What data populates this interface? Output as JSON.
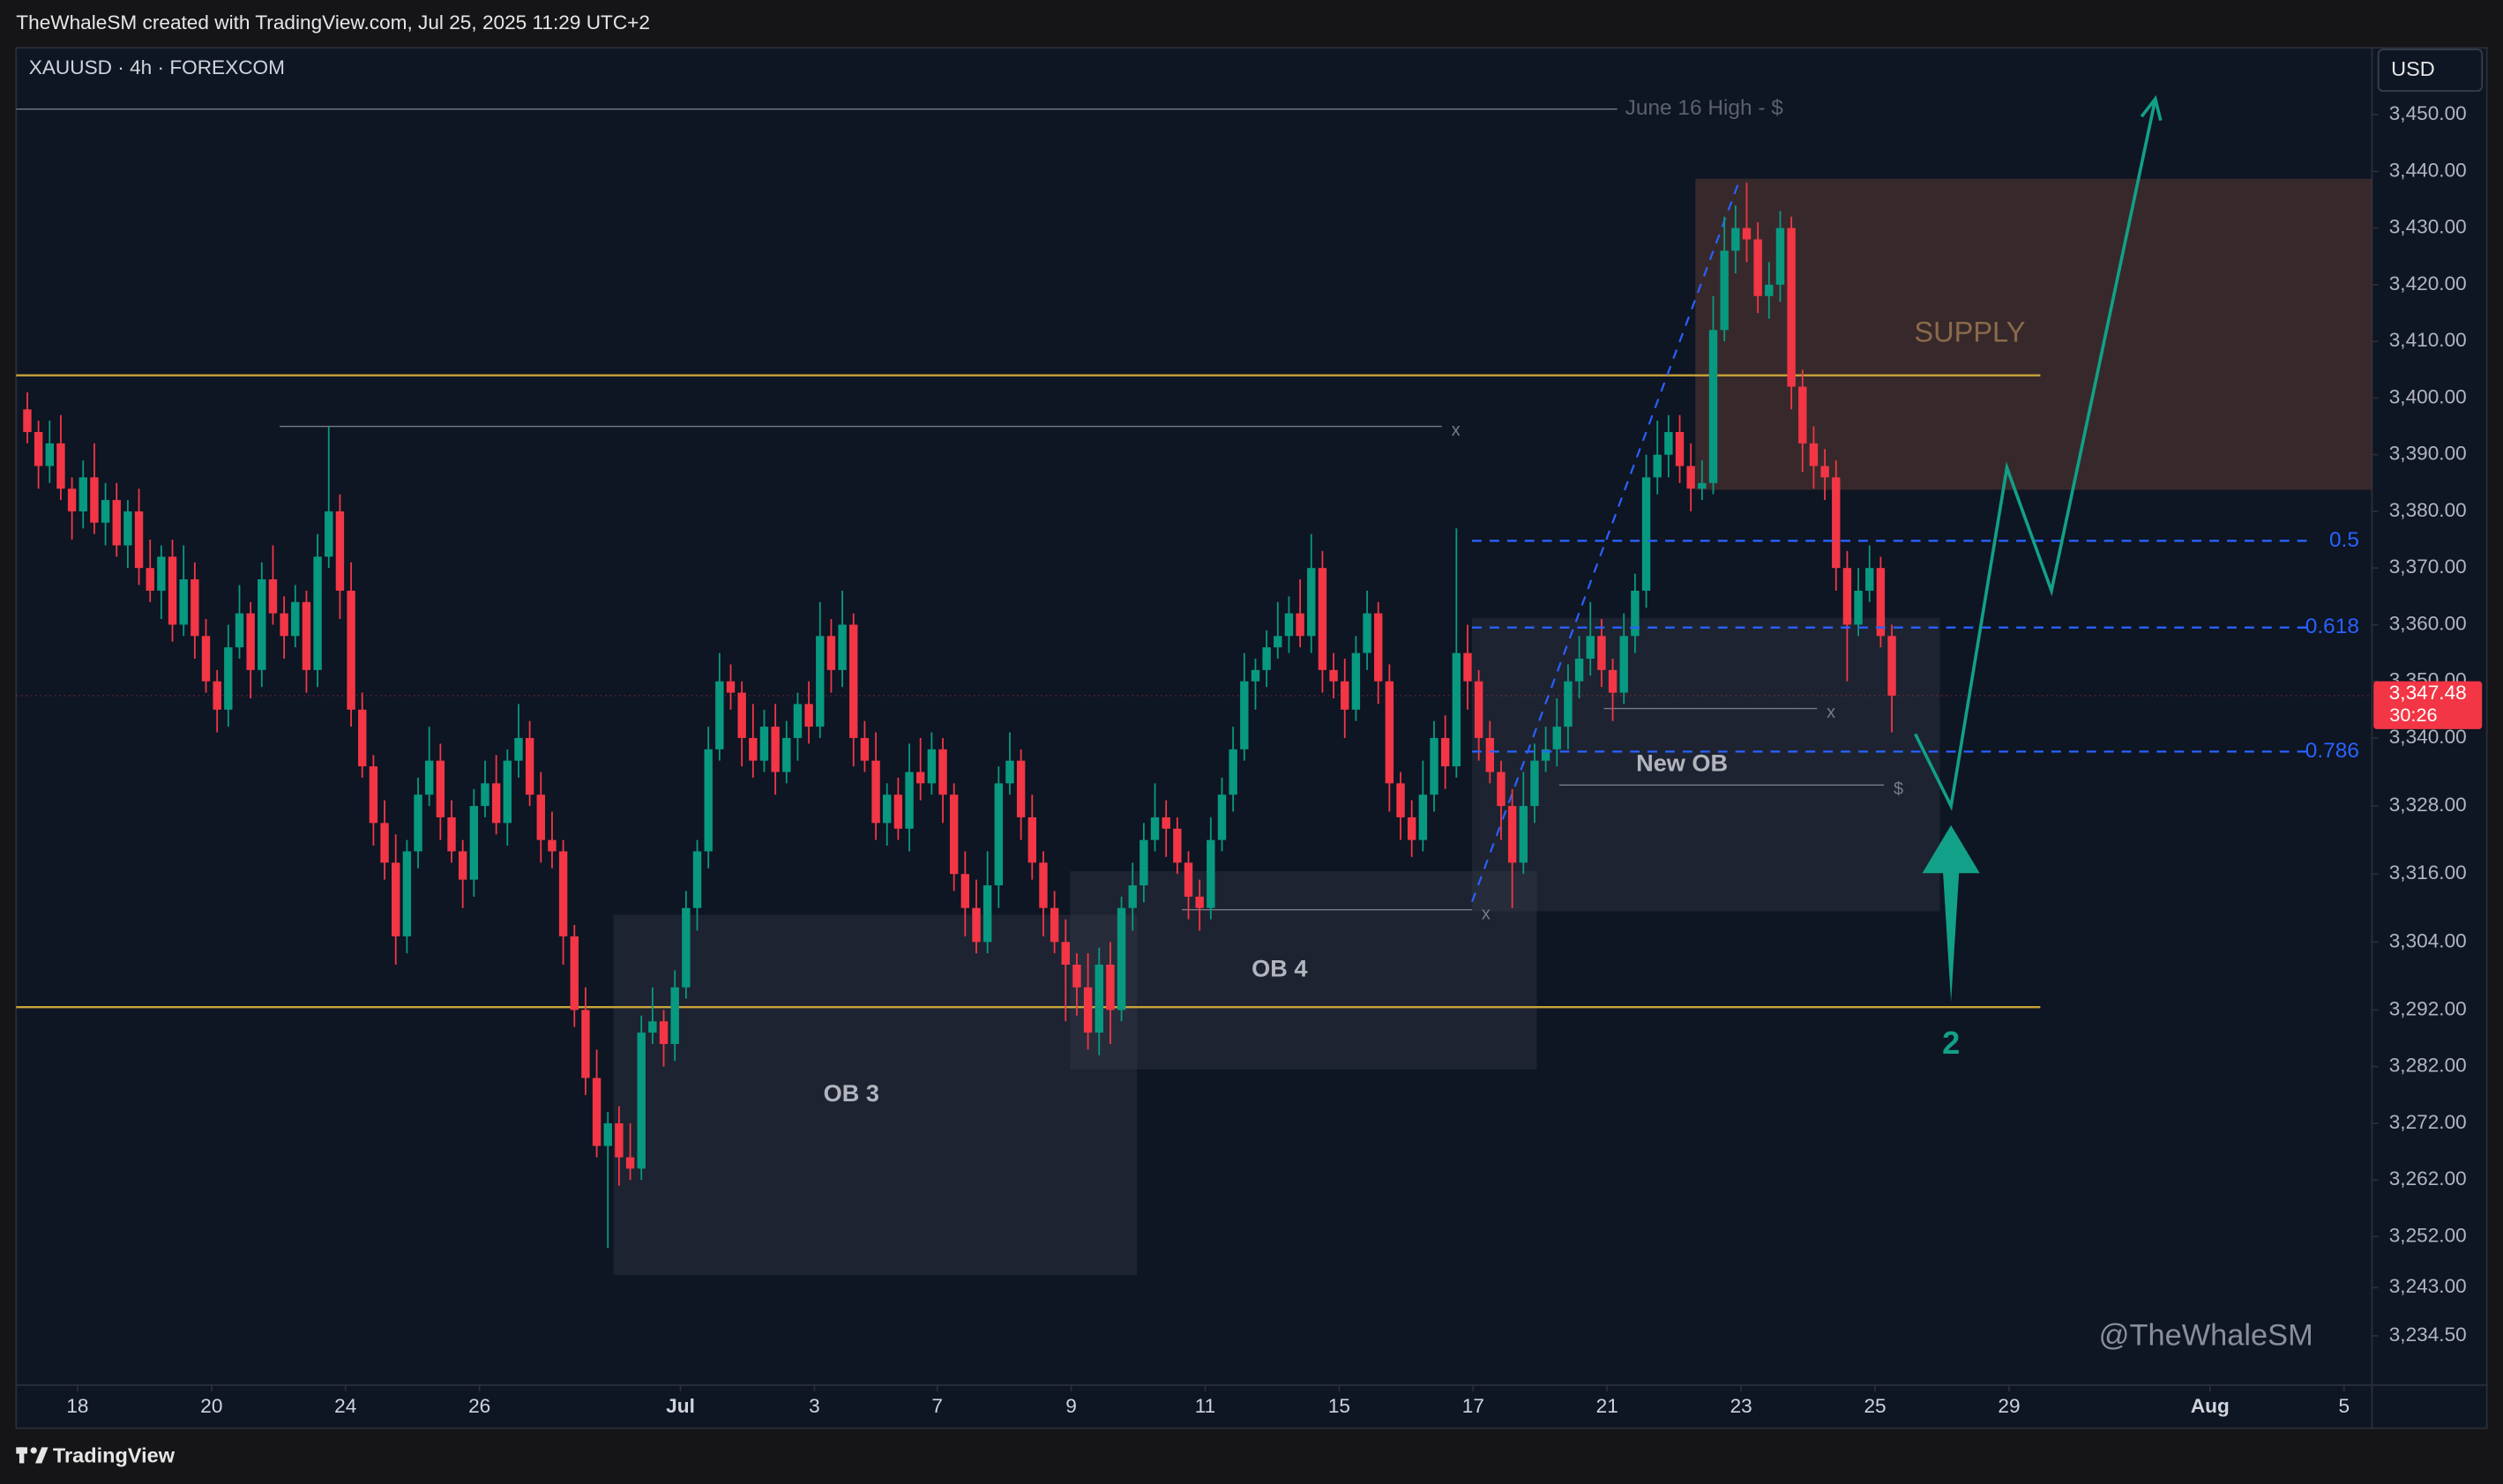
{
  "chart_data": {
    "type": "candlestick",
    "header": "TheWhaleSM created with TradingView.com, Jul 25, 2025 11:29 UTC+2",
    "symbol": "XAUUSD · 4h · FOREXCOM",
    "currency": "USD",
    "watermark": "@TheWhaleSM",
    "footer": "TradingView",
    "up_color": "#089981",
    "down_color": "#f23645",
    "grid": false,
    "xlim": [
      -1,
      210
    ],
    "ylim": [
      3225.8,
      3461.8
    ],
    "xticks": [
      {
        "value": 4.5,
        "label": "18"
      },
      {
        "value": 16.5,
        "label": "20"
      },
      {
        "value": 28.5,
        "label": "24"
      },
      {
        "value": 40.5,
        "label": "26"
      },
      {
        "value": 58.5,
        "label": "Jul"
      },
      {
        "value": 70.5,
        "label": "3"
      },
      {
        "value": 81.5,
        "label": "7"
      },
      {
        "value": 93.5,
        "label": "9"
      },
      {
        "value": 105.5,
        "label": "11"
      },
      {
        "value": 117.5,
        "label": "15"
      },
      {
        "value": 129.5,
        "label": "17"
      },
      {
        "value": 141.5,
        "label": "21"
      },
      {
        "value": 153.5,
        "label": "23"
      },
      {
        "value": 165.5,
        "label": "25"
      },
      {
        "value": 177.5,
        "label": "29"
      },
      {
        "value": 195.5,
        "label": "Aug"
      },
      {
        "value": 207.5,
        "label": "5"
      }
    ],
    "yticks": [
      {
        "value": 3450,
        "label": "3,450.00"
      },
      {
        "value": 3440,
        "label": "3,440.00"
      },
      {
        "value": 3430,
        "label": "3,430.00"
      },
      {
        "value": 3420,
        "label": "3,420.00"
      },
      {
        "value": 3410,
        "label": "3,410.00"
      },
      {
        "value": 3400,
        "label": "3,400.00"
      },
      {
        "value": 3390,
        "label": "3,390.00"
      },
      {
        "value": 3380,
        "label": "3,380.00"
      },
      {
        "value": 3370,
        "label": "3,370.00"
      },
      {
        "value": 3360,
        "label": "3,360.00"
      },
      {
        "value": 3350,
        "label": "3,350.00"
      },
      {
        "value": 3340,
        "label": "3,340.00"
      },
      {
        "value": 3328,
        "label": "3,328.00"
      },
      {
        "value": 3316,
        "label": "3,316.00"
      },
      {
        "value": 3304,
        "label": "3,304.00"
      },
      {
        "value": 3292,
        "label": "3,292.00"
      },
      {
        "value": 3282,
        "label": "3,282.00"
      },
      {
        "value": 3272,
        "label": "3,272.00"
      },
      {
        "value": 3262,
        "label": "3,262.00"
      },
      {
        "value": 3252,
        "label": "3,252.00"
      },
      {
        "value": 3243,
        "label": "3,243.00"
      },
      {
        "value": 3234.5,
        "label": "3,234.50"
      }
    ],
    "last_price": {
      "value": 3347.48,
      "label": "3,347.48",
      "countdown": "30:26",
      "color": "#f23645"
    },
    "candles": [
      [
        3398,
        3401,
        3392,
        3394
      ],
      [
        3394,
        3396,
        3384,
        3388
      ],
      [
        3388,
        3396,
        3385,
        3392
      ],
      [
        3392,
        3397,
        3382,
        3384
      ],
      [
        3384,
        3386,
        3375,
        3380
      ],
      [
        3380,
        3389,
        3377,
        3386
      ],
      [
        3386,
        3392,
        3376,
        3378
      ],
      [
        3378,
        3385,
        3374,
        3382
      ],
      [
        3382,
        3385,
        3372,
        3374
      ],
      [
        3374,
        3382,
        3370,
        3380
      ],
      [
        3380,
        3384,
        3367,
        3370
      ],
      [
        3370,
        3375,
        3364,
        3366
      ],
      [
        3366,
        3374,
        3361,
        3372
      ],
      [
        3372,
        3375,
        3357,
        3360
      ],
      [
        3360,
        3374,
        3358,
        3368
      ],
      [
        3368,
        3371,
        3354,
        3358
      ],
      [
        3358,
        3361,
        3348,
        3350
      ],
      [
        3350,
        3352,
        3341,
        3345
      ],
      [
        3345,
        3360,
        3342,
        3356
      ],
      [
        3356,
        3367,
        3354,
        3362
      ],
      [
        3362,
        3364,
        3347,
        3352
      ],
      [
        3352,
        3371,
        3349,
        3368
      ],
      [
        3368,
        3374,
        3360,
        3362
      ],
      [
        3362,
        3365,
        3354,
        3358
      ],
      [
        3358,
        3367,
        3356,
        3364
      ],
      [
        3364,
        3366,
        3348,
        3352
      ],
      [
        3352,
        3376,
        3349,
        3372
      ],
      [
        3372,
        3395,
        3370,
        3380
      ],
      [
        3380,
        3383,
        3361,
        3366
      ],
      [
        3366,
        3371,
        3342,
        3345
      ],
      [
        3345,
        3348,
        3333,
        3335
      ],
      [
        3335,
        3337,
        3321,
        3325
      ],
      [
        3325,
        3329,
        3315,
        3318
      ],
      [
        3318,
        3323,
        3300,
        3305
      ],
      [
        3305,
        3322,
        3302,
        3320
      ],
      [
        3320,
        3333,
        3317,
        3330
      ],
      [
        3330,
        3342,
        3328,
        3336
      ],
      [
        3336,
        3339,
        3322,
        3326
      ],
      [
        3326,
        3329,
        3318,
        3320
      ],
      [
        3320,
        3322,
        3310,
        3315
      ],
      [
        3315,
        3331,
        3312,
        3328
      ],
      [
        3328,
        3336,
        3326,
        3332
      ],
      [
        3332,
        3337,
        3323,
        3325
      ],
      [
        3325,
        3338,
        3321,
        3336
      ],
      [
        3336,
        3346,
        3333,
        3340
      ],
      [
        3340,
        3343,
        3328,
        3330
      ],
      [
        3330,
        3334,
        3318,
        3322
      ],
      [
        3322,
        3327,
        3317,
        3320
      ],
      [
        3320,
        3322,
        3300,
        3305
      ],
      [
        3305,
        3307,
        3289,
        3292
      ],
      [
        3292,
        3296,
        3277,
        3280
      ],
      [
        3280,
        3285,
        3266,
        3268
      ],
      [
        3268,
        3274,
        3250,
        3272
      ],
      [
        3272,
        3275,
        3261,
        3266
      ],
      [
        3266,
        3272,
        3262,
        3264
      ],
      [
        3264,
        3291,
        3262,
        3288
      ],
      [
        3288,
        3296,
        3286,
        3290
      ],
      [
        3290,
        3292,
        3282,
        3286
      ],
      [
        3286,
        3299,
        3283,
        3296
      ],
      [
        3296,
        3313,
        3294,
        3310
      ],
      [
        3310,
        3322,
        3306,
        3320
      ],
      [
        3320,
        3342,
        3317,
        3338
      ],
      [
        3338,
        3355,
        3336,
        3350
      ],
      [
        3350,
        3353,
        3345,
        3348
      ],
      [
        3348,
        3350,
        3335,
        3340
      ],
      [
        3340,
        3346,
        3333,
        3336
      ],
      [
        3336,
        3345,
        3334,
        3342
      ],
      [
        3342,
        3346,
        3330,
        3334
      ],
      [
        3334,
        3343,
        3332,
        3340
      ],
      [
        3340,
        3348,
        3336,
        3346
      ],
      [
        3346,
        3350,
        3339,
        3342
      ],
      [
        3342,
        3364,
        3340,
        3358
      ],
      [
        3358,
        3361,
        3348,
        3352
      ],
      [
        3352,
        3366,
        3349,
        3360
      ],
      [
        3360,
        3362,
        3335,
        3340
      ],
      [
        3340,
        3343,
        3334,
        3336
      ],
      [
        3336,
        3341,
        3322,
        3325
      ],
      [
        3325,
        3332,
        3321,
        3330
      ],
      [
        3330,
        3333,
        3322,
        3324
      ],
      [
        3324,
        3339,
        3320,
        3334
      ],
      [
        3334,
        3340,
        3329,
        3332
      ],
      [
        3332,
        3341,
        3330,
        3338
      ],
      [
        3338,
        3340,
        3325,
        3330
      ],
      [
        3330,
        3332,
        3313,
        3316
      ],
      [
        3316,
        3320,
        3305,
        3310
      ],
      [
        3310,
        3315,
        3302,
        3304
      ],
      [
        3304,
        3320,
        3302,
        3314
      ],
      [
        3314,
        3335,
        3310,
        3332
      ],
      [
        3332,
        3341,
        3330,
        3336
      ],
      [
        3336,
        3338,
        3322,
        3326
      ],
      [
        3326,
        3330,
        3315,
        3318
      ],
      [
        3318,
        3320,
        3305,
        3310
      ],
      [
        3310,
        3313,
        3302,
        3304
      ],
      [
        3304,
        3308,
        3290,
        3300
      ],
      [
        3300,
        3302,
        3291,
        3296
      ],
      [
        3296,
        3302,
        3285,
        3288
      ],
      [
        3288,
        3303,
        3284,
        3300
      ],
      [
        3300,
        3304,
        3286,
        3292
      ],
      [
        3292,
        3312,
        3290,
        3310
      ],
      [
        3310,
        3318,
        3306,
        3314
      ],
      [
        3314,
        3325,
        3311,
        3322
      ],
      [
        3322,
        3332,
        3320,
        3326
      ],
      [
        3326,
        3329,
        3319,
        3324
      ],
      [
        3324,
        3326,
        3316,
        3318
      ],
      [
        3318,
        3320,
        3308,
        3312
      ],
      [
        3312,
        3315,
        3306,
        3310
      ],
      [
        3310,
        3326,
        3308,
        3322
      ],
      [
        3322,
        3333,
        3320,
        3330
      ],
      [
        3330,
        3342,
        3327,
        3338
      ],
      [
        3338,
        3355,
        3336,
        3350
      ],
      [
        3350,
        3354,
        3345,
        3352
      ],
      [
        3352,
        3359,
        3349,
        3356
      ],
      [
        3356,
        3364,
        3354,
        3358
      ],
      [
        3358,
        3365,
        3355,
        3362
      ],
      [
        3362,
        3368,
        3356,
        3358
      ],
      [
        3358,
        3376,
        3355,
        3370
      ],
      [
        3370,
        3373,
        3348,
        3352
      ],
      [
        3352,
        3355,
        3347,
        3350
      ],
      [
        3350,
        3354,
        3340,
        3345
      ],
      [
        3345,
        3358,
        3343,
        3355
      ],
      [
        3355,
        3366,
        3352,
        3362
      ],
      [
        3362,
        3364,
        3346,
        3350
      ],
      [
        3350,
        3353,
        3327,
        3332
      ],
      [
        3332,
        3334,
        3322,
        3326
      ],
      [
        3326,
        3329,
        3319,
        3322
      ],
      [
        3322,
        3336,
        3320,
        3330
      ],
      [
        3330,
        3343,
        3327,
        3340
      ],
      [
        3340,
        3344,
        3331,
        3335
      ],
      [
        3335,
        3377,
        3333,
        3355
      ],
      [
        3355,
        3360,
        3345,
        3350
      ],
      [
        3350,
        3352,
        3336,
        3340
      ],
      [
        3340,
        3343,
        3332,
        3334
      ],
      [
        3334,
        3336,
        3322,
        3328
      ],
      [
        3328,
        3331,
        3310,
        3318
      ],
      [
        3318,
        3334,
        3316,
        3328
      ],
      [
        3328,
        3339,
        3325,
        3336
      ],
      [
        3336,
        3342,
        3334,
        3338
      ],
      [
        3338,
        3347,
        3335,
        3342
      ],
      [
        3342,
        3353,
        3338,
        3350
      ],
      [
        3350,
        3358,
        3347,
        3354
      ],
      [
        3354,
        3364,
        3351,
        3358
      ],
      [
        3358,
        3361,
        3349,
        3352
      ],
      [
        3352,
        3354,
        3343,
        3348
      ],
      [
        3348,
        3362,
        3346,
        3358
      ],
      [
        3358,
        3369,
        3355,
        3366
      ],
      [
        3366,
        3390,
        3363,
        3386
      ],
      [
        3386,
        3396,
        3383,
        3390
      ],
      [
        3390,
        3397,
        3386,
        3394
      ],
      [
        3394,
        3397,
        3385,
        3388
      ],
      [
        3388,
        3392,
        3380,
        3384
      ],
      [
        3384,
        3389,
        3382,
        3385
      ],
      [
        3385,
        3418,
        3383,
        3412
      ],
      [
        3412,
        3432,
        3410,
        3426
      ],
      [
        3426,
        3434,
        3422,
        3430
      ],
      [
        3430,
        3438,
        3424,
        3428
      ],
      [
        3428,
        3431,
        3415,
        3418
      ],
      [
        3418,
        3424,
        3414,
        3420
      ],
      [
        3420,
        3433,
        3417,
        3430
      ],
      [
        3430,
        3432,
        3398,
        3402
      ],
      [
        3402,
        3405,
        3387,
        3392
      ],
      [
        3392,
        3395,
        3384,
        3388
      ],
      [
        3388,
        3391,
        3382,
        3386
      ],
      [
        3386,
        3389,
        3366,
        3370
      ],
      [
        3370,
        3373,
        3350,
        3360
      ],
      [
        3360,
        3370,
        3358,
        3366
      ],
      [
        3366,
        3374,
        3364,
        3370
      ],
      [
        3370,
        3372,
        3356,
        3358
      ],
      [
        3358,
        3360,
        3341,
        3347.48
      ]
    ],
    "levels": [
      {
        "label": "June 16 High - $",
        "value": 3451,
        "x0": -1,
        "x1": 142.4,
        "color": "#787b86"
      },
      {
        "value": 3404,
        "x0": -1,
        "x1": 180.3,
        "color": "#c9a33a"
      },
      {
        "value": 3292.5,
        "x0": -1,
        "x1": 180.3,
        "color": "#c9a33a"
      }
    ],
    "fib": [
      {
        "ratio": 0.5,
        "value": 3374.8
      },
      {
        "ratio": 0.618,
        "value": 3359.5
      },
      {
        "ratio": 0.786,
        "value": 3337.6
      }
    ],
    "fib_x": [
      129.4,
      204.6
    ],
    "fib_color": "#2962ff",
    "zones": [
      {
        "label": "SUPPLY",
        "top": 3438.7,
        "bottom": 3383.8,
        "x0": 149.4,
        "x1": 210,
        "color": "#5a3a33"
      },
      {
        "label": "New OB",
        "top": 3361.2,
        "bottom": 3309.4,
        "x0": 129.4,
        "x1": 171.3,
        "color": "#3a3f4b"
      },
      {
        "label": "OB 4",
        "top": 3316.5,
        "bottom": 3281.5,
        "x0": 93.4,
        "x1": 135.2,
        "color": "#3a3f4b"
      },
      {
        "label": "OB 3",
        "top": 3308.8,
        "bottom": 3245.2,
        "x0": 52.5,
        "x1": 99.4,
        "color": "#3a3f4b"
      }
    ],
    "segments": [
      {
        "value": 3395,
        "x0": 22.6,
        "x1": 126.7,
        "marker": "x"
      },
      {
        "value": 3345.2,
        "x0": 141.2,
        "x1": 160.3,
        "marker": "x"
      },
      {
        "value": 3331.7,
        "x0": 137.2,
        "x1": 166.3,
        "marker": "$"
      },
      {
        "value": 3309.7,
        "x0": 103.4,
        "x1": 129.4,
        "marker": "x"
      }
    ],
    "trend": {
      "x": [
        129.4,
        153.4
      ],
      "y": [
        3311.1,
        3438.7
      ],
      "color": "#2962ff"
    },
    "projection": {
      "x": [
        169.1,
        172.3,
        177.3,
        181.3,
        190.6
      ],
      "y": [
        3340.7,
        3328.0,
        3387.7,
        3366.0,
        3452.8
      ],
      "color": "#12a088"
    },
    "arrow": {
      "label": "2",
      "x": 172.3,
      "from": 3293.4,
      "to": 3324.6,
      "color": "#12a088"
    }
  }
}
